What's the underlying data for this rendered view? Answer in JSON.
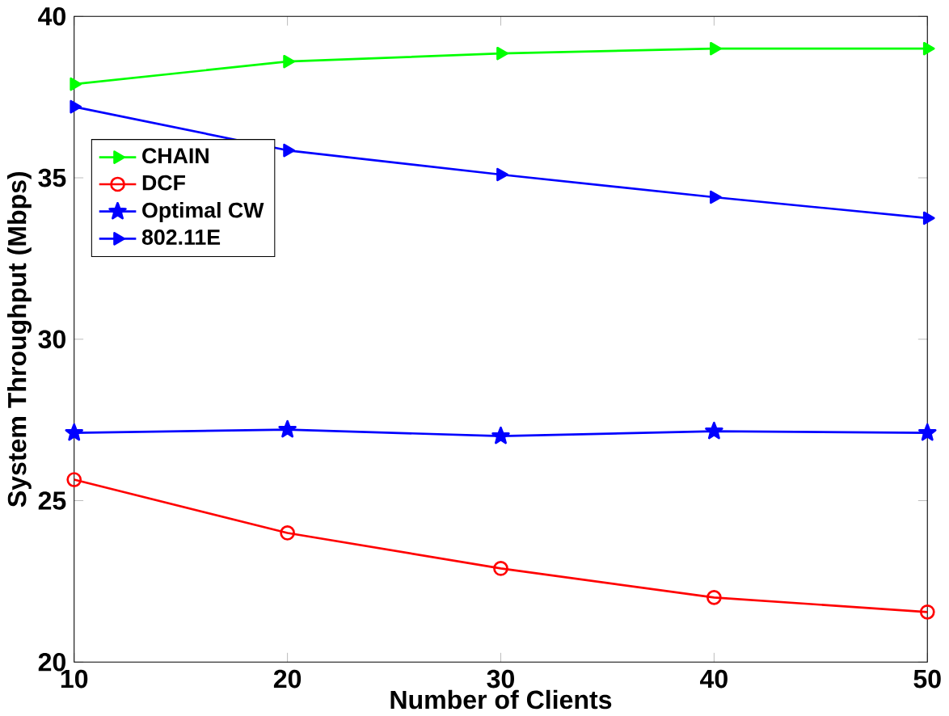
{
  "chart_data": {
    "type": "line",
    "xlabel": "Number of Clients",
    "ylabel": "System Throughput (Mbps)",
    "x": [
      10,
      20,
      30,
      40,
      50
    ],
    "series": [
      {
        "name": "CHAIN",
        "color": "#00ff00",
        "marker": "triangle",
        "values": [
          37.9,
          38.6,
          38.85,
          39.0,
          39.0
        ]
      },
      {
        "name": "DCF",
        "color": "#ff0000",
        "marker": "circle",
        "values": [
          25.65,
          24.0,
          22.9,
          22.0,
          21.55
        ]
      },
      {
        "name": "Optimal CW",
        "color": "#0000ff",
        "marker": "star",
        "values": [
          27.1,
          27.2,
          27.0,
          27.15,
          27.1
        ]
      },
      {
        "name": "802.11E",
        "color": "#0000ff",
        "marker": "triangle",
        "values": [
          37.2,
          35.85,
          35.1,
          34.4,
          33.75
        ]
      }
    ],
    "xlim": [
      10,
      50
    ],
    "xticks": [
      10,
      20,
      30,
      40,
      50
    ],
    "ylim": [
      20,
      40
    ],
    "yticks": [
      20,
      25,
      30,
      35,
      40
    ],
    "grid": false,
    "legend": "top left",
    "line_style": "solid"
  }
}
